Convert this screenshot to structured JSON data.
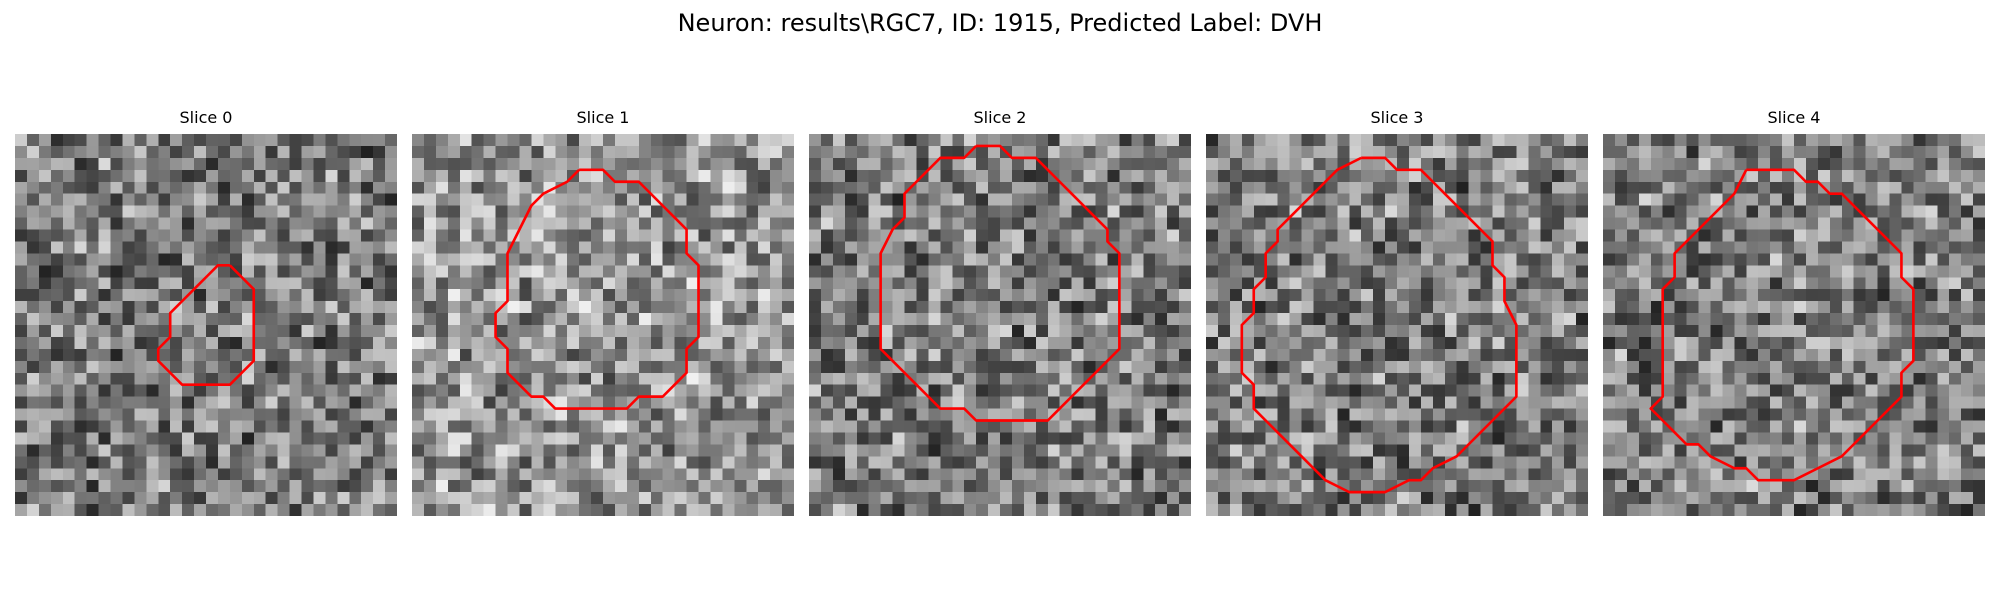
{
  "figure": {
    "title": "Neuron: results\\RGC7, ID: 1915, Predicted Label: DVH"
  },
  "colors": {
    "contour": "#ff0000",
    "background": "#ffffff"
  },
  "slices": [
    {
      "label": "Slice 0",
      "seed": 11,
      "tone": "mixed",
      "contour": [
        [
          18,
          11
        ],
        [
          17,
          11
        ],
        [
          16,
          12
        ],
        [
          15,
          13
        ],
        [
          14,
          14
        ],
        [
          13,
          15
        ],
        [
          13,
          17
        ],
        [
          12,
          18
        ],
        [
          12,
          19
        ],
        [
          13,
          20
        ],
        [
          14,
          21
        ],
        [
          15,
          21
        ],
        [
          16,
          21
        ],
        [
          17,
          21
        ],
        [
          18,
          21
        ],
        [
          19,
          20
        ],
        [
          20,
          19
        ],
        [
          20,
          17
        ],
        [
          20,
          15
        ],
        [
          20,
          13
        ],
        [
          19,
          12
        ],
        [
          18,
          11
        ]
      ]
    },
    {
      "label": "Slice 1",
      "seed": 23,
      "tone": "light",
      "contour": [
        [
          14,
          3
        ],
        [
          16,
          3
        ],
        [
          17,
          4
        ],
        [
          19,
          4
        ],
        [
          21,
          6
        ],
        [
          22,
          7
        ],
        [
          23,
          8
        ],
        [
          23,
          10
        ],
        [
          24,
          11
        ],
        [
          24,
          13
        ],
        [
          24,
          15
        ],
        [
          24,
          17
        ],
        [
          23,
          18
        ],
        [
          23,
          20
        ],
        [
          22,
          21
        ],
        [
          21,
          22
        ],
        [
          19,
          22
        ],
        [
          18,
          23
        ],
        [
          16,
          23
        ],
        [
          14,
          23
        ],
        [
          12,
          23
        ],
        [
          11,
          22
        ],
        [
          10,
          22
        ],
        [
          9,
          21
        ],
        [
          8,
          20
        ],
        [
          8,
          18
        ],
        [
          7,
          17
        ],
        [
          7,
          15
        ],
        [
          8,
          14
        ],
        [
          8,
          12
        ],
        [
          8,
          10
        ],
        [
          9,
          8
        ],
        [
          10,
          6
        ],
        [
          11,
          5
        ],
        [
          13,
          4
        ],
        [
          14,
          3
        ]
      ]
    },
    {
      "label": "Slice 2",
      "seed": 37,
      "tone": "mixed",
      "contour": [
        [
          14,
          1
        ],
        [
          16,
          1
        ],
        [
          17,
          2
        ],
        [
          19,
          2
        ],
        [
          20,
          3
        ],
        [
          21,
          4
        ],
        [
          22,
          5
        ],
        [
          23,
          6
        ],
        [
          24,
          7
        ],
        [
          25,
          8
        ],
        [
          25,
          9
        ],
        [
          26,
          10
        ],
        [
          26,
          12
        ],
        [
          26,
          14
        ],
        [
          26,
          16
        ],
        [
          26,
          18
        ],
        [
          25,
          19
        ],
        [
          24,
          20
        ],
        [
          23,
          21
        ],
        [
          22,
          22
        ],
        [
          21,
          23
        ],
        [
          20,
          24
        ],
        [
          18,
          24
        ],
        [
          16,
          24
        ],
        [
          14,
          24
        ],
        [
          13,
          23
        ],
        [
          11,
          23
        ],
        [
          10,
          22
        ],
        [
          9,
          21
        ],
        [
          8,
          20
        ],
        [
          7,
          19
        ],
        [
          6,
          18
        ],
        [
          6,
          16
        ],
        [
          6,
          14
        ],
        [
          6,
          12
        ],
        [
          6,
          10
        ],
        [
          7,
          8
        ],
        [
          8,
          7
        ],
        [
          8,
          5
        ],
        [
          9,
          4
        ],
        [
          10,
          3
        ],
        [
          11,
          2
        ],
        [
          13,
          2
        ],
        [
          14,
          1
        ]
      ]
    },
    {
      "label": "Slice 3",
      "seed": 51,
      "tone": "mixed",
      "contour": [
        [
          13,
          2
        ],
        [
          15,
          2
        ],
        [
          16,
          3
        ],
        [
          18,
          3
        ],
        [
          19,
          4
        ],
        [
          20,
          5
        ],
        [
          21,
          6
        ],
        [
          22,
          7
        ],
        [
          23,
          8
        ],
        [
          24,
          9
        ],
        [
          24,
          11
        ],
        [
          25,
          12
        ],
        [
          25,
          14
        ],
        [
          26,
          16
        ],
        [
          26,
          18
        ],
        [
          26,
          20
        ],
        [
          26,
          22
        ],
        [
          25,
          23
        ],
        [
          24,
          24
        ],
        [
          23,
          25
        ],
        [
          22,
          26
        ],
        [
          21,
          27
        ],
        [
          19,
          28
        ],
        [
          18,
          29
        ],
        [
          17,
          29
        ],
        [
          15,
          30
        ],
        [
          12,
          30
        ],
        [
          10,
          29
        ],
        [
          9,
          28
        ],
        [
          8,
          27
        ],
        [
          6,
          25
        ],
        [
          5,
          24
        ],
        [
          4,
          23
        ],
        [
          4,
          21
        ],
        [
          3,
          20
        ],
        [
          3,
          18
        ],
        [
          3,
          16
        ],
        [
          4,
          15
        ],
        [
          4,
          13
        ],
        [
          5,
          12
        ],
        [
          5,
          10
        ],
        [
          6,
          9
        ],
        [
          6,
          8
        ],
        [
          7,
          7
        ],
        [
          8,
          6
        ],
        [
          9,
          5
        ],
        [
          10,
          4
        ],
        [
          11,
          3
        ],
        [
          13,
          2
        ]
      ]
    },
    {
      "label": "Slice 4",
      "seed": 67,
      "tone": "mixed",
      "contour": [
        [
          12,
          3
        ],
        [
          16,
          3
        ],
        [
          17,
          4
        ],
        [
          18,
          4
        ],
        [
          19,
          5
        ],
        [
          20,
          5
        ],
        [
          21,
          6
        ],
        [
          22,
          7
        ],
        [
          23,
          8
        ],
        [
          24,
          9
        ],
        [
          25,
          10
        ],
        [
          25,
          12
        ],
        [
          26,
          13
        ],
        [
          26,
          15
        ],
        [
          26,
          17
        ],
        [
          26,
          19
        ],
        [
          25,
          20
        ],
        [
          25,
          22
        ],
        [
          24,
          23
        ],
        [
          23,
          24
        ],
        [
          22,
          25
        ],
        [
          21,
          26
        ],
        [
          20,
          27
        ],
        [
          18,
          28
        ],
        [
          16,
          29
        ],
        [
          13,
          29
        ],
        [
          12,
          28
        ],
        [
          11,
          28
        ],
        [
          9,
          27
        ],
        [
          8,
          26
        ],
        [
          7,
          26
        ],
        [
          6,
          25
        ],
        [
          5,
          24
        ],
        [
          4,
          23
        ],
        [
          5,
          22
        ],
        [
          5,
          20
        ],
        [
          5,
          18
        ],
        [
          5,
          16
        ],
        [
          5,
          14
        ],
        [
          5,
          13
        ],
        [
          6,
          12
        ],
        [
          6,
          10
        ],
        [
          7,
          9
        ],
        [
          8,
          8
        ],
        [
          9,
          7
        ],
        [
          10,
          6
        ],
        [
          11,
          5
        ],
        [
          12,
          3
        ]
      ]
    }
  ]
}
